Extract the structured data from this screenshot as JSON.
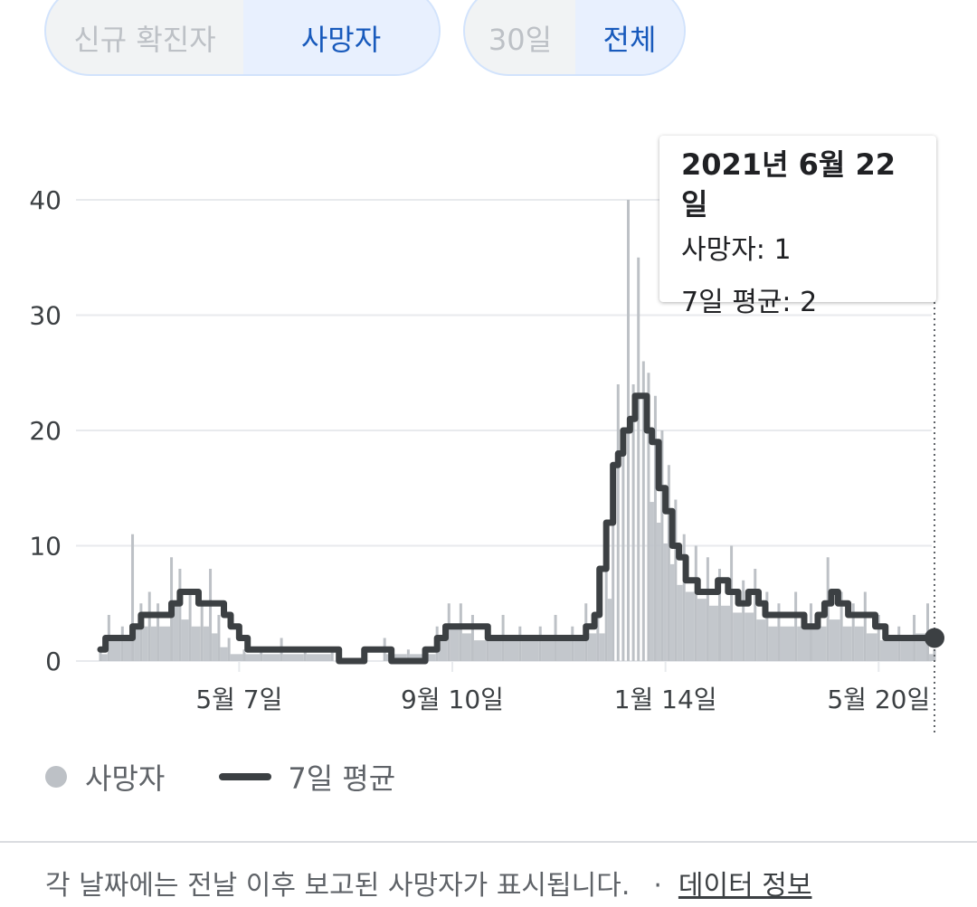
{
  "tabs": {
    "metric": {
      "options": [
        "신규 확진자",
        "사망자"
      ],
      "selected": "사망자"
    },
    "range": {
      "options": [
        "30일",
        "전체"
      ],
      "selected": "전체"
    }
  },
  "tooltip": {
    "date": "2021년 6월 22일",
    "deaths_label": "사망자: 1",
    "avg_label": "7일 평균: 2"
  },
  "legend": {
    "deaths": "사망자",
    "avg": "7일 평균"
  },
  "footer": {
    "note": "각 날짜에는 전날 이후 보고된 사망자가 표시됩니다.",
    "separator": "·",
    "link": "데이터 정보"
  },
  "colors": {
    "bars": "#bdc1c6",
    "line": "#3c4043",
    "grid": "#e8eaed",
    "accent": "#185abc"
  },
  "chart_data": {
    "type": "bar",
    "ylim": [
      0,
      40
    ],
    "y_ticks": [
      0,
      10,
      20,
      30,
      40
    ],
    "x_ticks": [
      "5월 7일",
      "9월 10일",
      "1월 14일",
      "5월 20일"
    ],
    "x_tick_dates": [
      "2020-05-07",
      "2020-09-10",
      "2021-01-14",
      "2021-05-20"
    ],
    "x_range": [
      "2020-02-15",
      "2021-06-22"
    ],
    "series": [
      {
        "name": "사망자",
        "kind": "bars",
        "points": [
          [
            "2020-02-15",
            1
          ],
          [
            "2020-02-20",
            4
          ],
          [
            "2020-02-28",
            3
          ],
          [
            "2020-03-05",
            11
          ],
          [
            "2020-03-10",
            5
          ],
          [
            "2020-03-15",
            6
          ],
          [
            "2020-03-20",
            5
          ],
          [
            "2020-03-28",
            9
          ],
          [
            "2020-04-02",
            8
          ],
          [
            "2020-04-08",
            6
          ],
          [
            "2020-04-15",
            5
          ],
          [
            "2020-04-20",
            8
          ],
          [
            "2020-04-25",
            4
          ],
          [
            "2020-05-01",
            2
          ],
          [
            "2020-05-10",
            1
          ],
          [
            "2020-05-20",
            1
          ],
          [
            "2020-06-01",
            2
          ],
          [
            "2020-06-15",
            1
          ],
          [
            "2020-07-01",
            1
          ],
          [
            "2020-07-15",
            0
          ],
          [
            "2020-08-01",
            2
          ],
          [
            "2020-08-15",
            1
          ],
          [
            "2020-08-25",
            1
          ],
          [
            "2020-09-01",
            3
          ],
          [
            "2020-09-08",
            5
          ],
          [
            "2020-09-15",
            5
          ],
          [
            "2020-09-22",
            4
          ],
          [
            "2020-10-01",
            3
          ],
          [
            "2020-10-10",
            4
          ],
          [
            "2020-10-20",
            3
          ],
          [
            "2020-11-01",
            3
          ],
          [
            "2020-11-10",
            4
          ],
          [
            "2020-11-20",
            3
          ],
          [
            "2020-11-28",
            5
          ],
          [
            "2020-12-05",
            4
          ],
          [
            "2020-12-10",
            9
          ],
          [
            "2020-12-14",
            15
          ],
          [
            "2020-12-17",
            24
          ],
          [
            "2020-12-20",
            19
          ],
          [
            "2020-12-23",
            40
          ],
          [
            "2020-12-26",
            24
          ],
          [
            "2020-12-29",
            35
          ],
          [
            "2021-01-01",
            26
          ],
          [
            "2021-01-04",
            25
          ],
          [
            "2021-01-08",
            23
          ],
          [
            "2021-01-12",
            20
          ],
          [
            "2021-01-16",
            17
          ],
          [
            "2021-01-20",
            14
          ],
          [
            "2021-01-25",
            11
          ],
          [
            "2021-02-01",
            10
          ],
          [
            "2021-02-08",
            9
          ],
          [
            "2021-02-15",
            8
          ],
          [
            "2021-02-22",
            10
          ],
          [
            "2021-03-01",
            7
          ],
          [
            "2021-03-08",
            8
          ],
          [
            "2021-03-15",
            6
          ],
          [
            "2021-03-22",
            5
          ],
          [
            "2021-04-01",
            6
          ],
          [
            "2021-04-10",
            5
          ],
          [
            "2021-04-20",
            9
          ],
          [
            "2021-04-28",
            6
          ],
          [
            "2021-05-05",
            5
          ],
          [
            "2021-05-12",
            6
          ],
          [
            "2021-05-20",
            4
          ],
          [
            "2021-06-01",
            3
          ],
          [
            "2021-06-10",
            4
          ],
          [
            "2021-06-18",
            5
          ],
          [
            "2021-06-22",
            1
          ]
        ]
      },
      {
        "name": "7일 평균",
        "kind": "line",
        "points": [
          [
            "2020-02-15",
            1
          ],
          [
            "2020-02-18",
            2
          ],
          [
            "2020-02-28",
            2
          ],
          [
            "2020-03-05",
            3
          ],
          [
            "2020-03-10",
            4
          ],
          [
            "2020-03-20",
            4
          ],
          [
            "2020-03-28",
            5
          ],
          [
            "2020-04-02",
            6
          ],
          [
            "2020-04-08",
            6
          ],
          [
            "2020-04-13",
            5
          ],
          [
            "2020-04-22",
            5
          ],
          [
            "2020-04-28",
            4
          ],
          [
            "2020-05-02",
            3
          ],
          [
            "2020-05-07",
            2
          ],
          [
            "2020-05-12",
            1
          ],
          [
            "2020-06-20",
            1
          ],
          [
            "2020-06-28",
            1
          ],
          [
            "2020-07-05",
            0
          ],
          [
            "2020-07-20",
            1
          ],
          [
            "2020-07-30",
            1
          ],
          [
            "2020-08-05",
            0
          ],
          [
            "2020-08-20",
            0
          ],
          [
            "2020-08-25",
            1
          ],
          [
            "2020-09-01",
            2
          ],
          [
            "2020-09-06",
            3
          ],
          [
            "2020-09-12",
            3
          ],
          [
            "2020-09-18",
            3
          ],
          [
            "2020-09-25",
            3
          ],
          [
            "2020-10-01",
            2
          ],
          [
            "2020-10-05",
            2
          ],
          [
            "2020-11-10",
            2
          ],
          [
            "2020-11-20",
            2
          ],
          [
            "2020-11-28",
            3
          ],
          [
            "2020-12-03",
            4
          ],
          [
            "2020-12-06",
            8
          ],
          [
            "2020-12-10",
            12
          ],
          [
            "2020-12-14",
            17
          ],
          [
            "2020-12-17",
            18
          ],
          [
            "2020-12-20",
            20
          ],
          [
            "2020-12-24",
            21
          ],
          [
            "2020-12-27",
            23
          ],
          [
            "2021-01-01",
            23
          ],
          [
            "2021-01-03",
            20
          ],
          [
            "2021-01-06",
            19
          ],
          [
            "2021-01-10",
            15
          ],
          [
            "2021-01-14",
            13
          ],
          [
            "2021-01-18",
            10
          ],
          [
            "2021-01-22",
            9
          ],
          [
            "2021-01-26",
            7
          ],
          [
            "2021-02-02",
            6
          ],
          [
            "2021-02-08",
            6
          ],
          [
            "2021-02-14",
            7
          ],
          [
            "2021-02-20",
            6
          ],
          [
            "2021-02-26",
            5
          ],
          [
            "2021-03-04",
            6
          ],
          [
            "2021-03-10",
            5
          ],
          [
            "2021-03-14",
            4
          ],
          [
            "2021-03-20",
            4
          ],
          [
            "2021-03-28",
            4
          ],
          [
            "2021-04-06",
            3
          ],
          [
            "2021-04-14",
            4
          ],
          [
            "2021-04-18",
            5
          ],
          [
            "2021-04-22",
            6
          ],
          [
            "2021-04-26",
            5
          ],
          [
            "2021-05-02",
            4
          ],
          [
            "2021-05-10",
            4
          ],
          [
            "2021-05-18",
            3
          ],
          [
            "2021-05-24",
            2
          ],
          [
            "2021-06-22",
            2
          ]
        ]
      }
    ]
  }
}
